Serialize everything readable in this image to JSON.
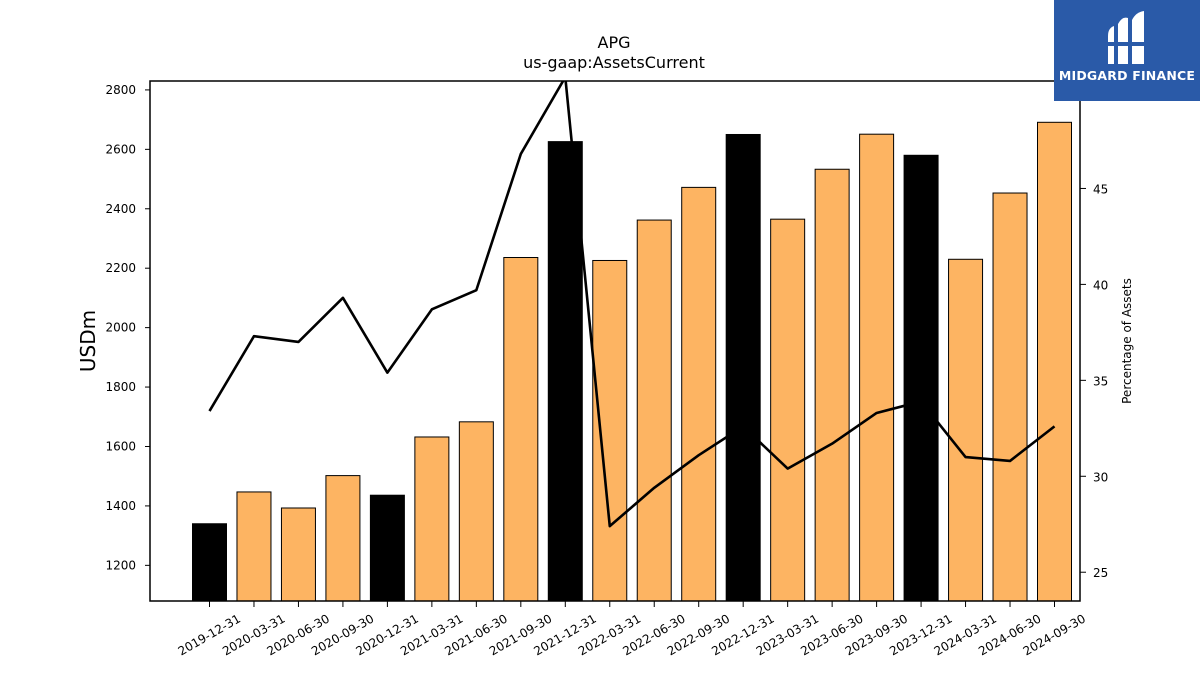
{
  "logo": {
    "text": "MIDGARD FINANCE",
    "color": "#2a5aa8"
  },
  "chart_data": {
    "type": "bar",
    "title": "APG",
    "subtitle": "us-gaap:AssetsCurrent",
    "ylabel": "USDm",
    "y2label": "Percentage of Assets",
    "categories": [
      "2019-12-31",
      "2020-03-31",
      "2020-06-30",
      "2020-09-30",
      "2020-12-31",
      "2021-03-31",
      "2021-06-30",
      "2021-09-30",
      "2021-12-31",
      "2022-03-31",
      "2022-06-30",
      "2022-09-30",
      "2022-12-31",
      "2023-03-31",
      "2023-06-30",
      "2023-09-30",
      "2023-12-31",
      "2024-03-31",
      "2024-06-30",
      "2024-09-30"
    ],
    "series": [
      {
        "values": [
          1340,
          1447,
          1393,
          1502,
          1436,
          1632,
          1683,
          2236,
          2626,
          2226,
          2362,
          2472,
          2650,
          2365,
          2533,
          2651,
          2580,
          2230,
          2453,
          2691
        ],
        "highlight": [
          true,
          false,
          false,
          false,
          true,
          false,
          false,
          false,
          true,
          false,
          false,
          false,
          true,
          false,
          false,
          false,
          true,
          false,
          false,
          false
        ],
        "colors": {
          "default": "#fdb462",
          "highlight": "#000000"
        }
      },
      {
        "axis": "right",
        "color": "#000000",
        "values": [
          33.4,
          37.3,
          37.0,
          39.3,
          35.4,
          38.7,
          39.7,
          46.8,
          50.8,
          27.4,
          29.4,
          31.1,
          32.6,
          30.4,
          31.7,
          33.3,
          33.9,
          31.0,
          30.8,
          32.6
        ]
      }
    ],
    "ylim": [
      1080,
      2830
    ],
    "y2lim": [
      23.5,
      50.6
    ],
    "yticks": [
      1200,
      1400,
      1600,
      1800,
      2000,
      2200,
      2400,
      2600,
      2800
    ],
    "y2ticks": [
      25,
      30,
      35,
      40,
      45
    ]
  }
}
